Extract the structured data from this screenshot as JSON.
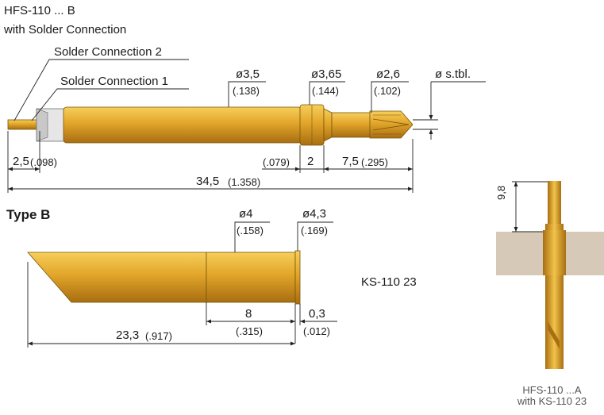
{
  "drawing": {
    "title_line1": "HFS-110 ... B",
    "title_line2": "with Solder Connection",
    "solder_2": "Solder Connection 2",
    "solder_1": "Solder Connection 1",
    "top": {
      "d1": "ø3,5",
      "d1_in": "(.138)",
      "d2": "ø3,65",
      "d2_in": "(.144)",
      "d3": "ø2,6",
      "d3_in": "(.102)",
      "d4": "ø s.tbl.",
      "len_left": "2,5",
      "len_left_in": "(.098)",
      "len_mid_in": "(.079)",
      "len_mid": "2",
      "len_right": "7,5",
      "len_right_in": "(.295)",
      "total": "34,5",
      "total_in": "(1.358)"
    },
    "type_b": "Type B",
    "bottom": {
      "d1": "ø4",
      "d1_in": "(.158)",
      "d2": "ø4,3",
      "d2_in": "(.169)",
      "part": "KS-110 23",
      "len_a": "8",
      "len_a_in": "(.315)",
      "len_b": "0,3",
      "len_b_in": "(.012)",
      "total": "23,3",
      "total_in": "(.917)"
    },
    "photo": {
      "dim": "9,8",
      "caption_line1": "HFS-110 ...A",
      "caption_line2": "with KS-110 23"
    },
    "colors": {
      "gold": "#e0a62a",
      "gold_dark": "#9a6a10",
      "board": "#d6c9b8"
    }
  }
}
